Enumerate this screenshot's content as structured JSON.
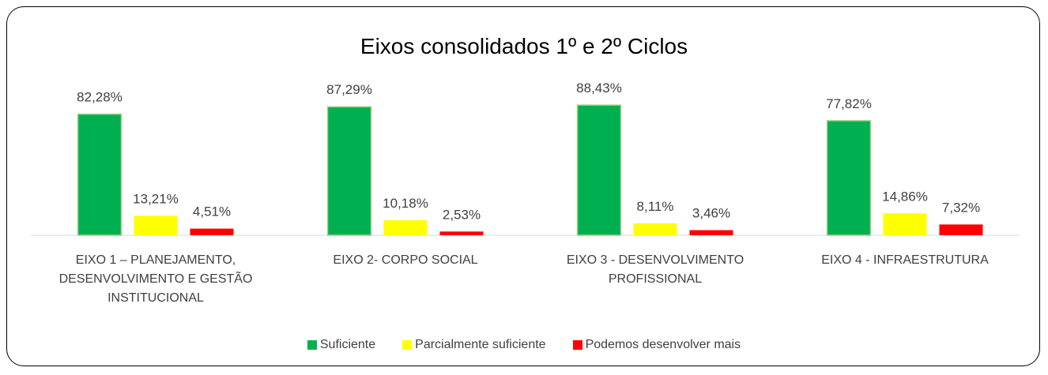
{
  "chart_data": {
    "type": "bar",
    "title": "Eixos consolidados 1º e 2º Ciclos",
    "categories": [
      "EIXO 1 – PLANEJAMENTO, DESENVOLVIMENTO E GESTÃO INSTITUCIONAL",
      "EIXO 2- CORPO SOCIAL",
      "EIXO 3 - DESENVOLVIMENTO PROFISSIONAL",
      "EIXO 4 - INFRAESTRUTURA"
    ],
    "series": [
      {
        "name": "Suficiente",
        "color": "#00b050",
        "values": [
          82.28,
          87.29,
          88.43,
          77.82
        ],
        "value_labels": [
          "82,28%",
          "87,29%",
          "88,43%",
          "77,82%"
        ]
      },
      {
        "name": "Parcialmente suficiente",
        "color": "#ffff00",
        "values": [
          13.21,
          10.18,
          8.11,
          14.86
        ],
        "value_labels": [
          "13,21%",
          "10,18%",
          "8,11%",
          "14,86%"
        ]
      },
      {
        "name": "Podemos desenvolver mais",
        "color": "#ff0000",
        "values": [
          4.51,
          2.53,
          3.46,
          7.32
        ],
        "value_labels": [
          "4,51%",
          "2,53%",
          "3,46%",
          "7,32%"
        ]
      }
    ],
    "ylim": [
      0,
      100
    ],
    "legend": "bottom"
  }
}
